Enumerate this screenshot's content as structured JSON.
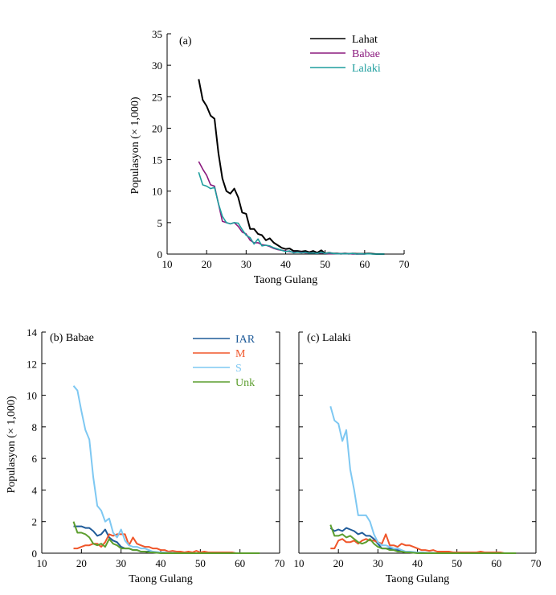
{
  "chart_data": [
    {
      "id": "a",
      "type": "line",
      "panel_label": "(a)",
      "xlabel": "Taong Gulang",
      "ylabel": "Populasyon (× 1,000)",
      "xlim": [
        10,
        70
      ],
      "ylim": [
        0,
        35
      ],
      "xticks": [
        "10",
        "20",
        "30",
        "40",
        "50",
        "60",
        "70"
      ],
      "yticks": [
        "0",
        "5",
        "10",
        "15",
        "20",
        "25",
        "30",
        "35"
      ],
      "legend_position": "top-right",
      "series": [
        {
          "name": "Lahat",
          "color": "#000000",
          "x": [
            18,
            19,
            20,
            21,
            22,
            23,
            24,
            25,
            26,
            27,
            28,
            29,
            30,
            31,
            32,
            33,
            34,
            35,
            36,
            37,
            38,
            39,
            40,
            41,
            42,
            43,
            44,
            45,
            46,
            47,
            48,
            49,
            50,
            51,
            52,
            53,
            54,
            55,
            56,
            57,
            58,
            59,
            60,
            61,
            62,
            63,
            64,
            65
          ],
          "y": [
            27.8,
            24.5,
            23.5,
            22,
            21.5,
            16,
            12,
            10,
            9.6,
            10.4,
            9,
            6.6,
            6.4,
            4,
            4,
            3.2,
            3,
            2.2,
            2.5,
            1.8,
            1.4,
            1,
            0.8,
            0.9,
            0.5,
            0.5,
            0.4,
            0.5,
            0.3,
            0.5,
            0.2,
            0.6,
            0.1,
            0.2,
            0.1,
            0.1,
            0.05,
            0.1,
            0.05,
            0.1,
            0.05,
            0.05,
            0.05,
            0.1,
            0.05,
            0,
            0,
            0
          ]
        },
        {
          "name": "Babae",
          "color": "#8B1A7E",
          "x": [
            18,
            19,
            20,
            21,
            22,
            23,
            24,
            25,
            26,
            27,
            28,
            29,
            30,
            31,
            32,
            33,
            34,
            35,
            36,
            37,
            38,
            39,
            40,
            41,
            42,
            43,
            44,
            45,
            46,
            47,
            48,
            49,
            50,
            51,
            52,
            53,
            54,
            55,
            56,
            57,
            58,
            59,
            60
          ],
          "y": [
            14.7,
            13.5,
            12.5,
            11,
            10.8,
            8,
            5.2,
            5,
            4.8,
            5,
            4.4,
            3.5,
            3.2,
            2.2,
            1.8,
            1.8,
            1.5,
            1.4,
            1.2,
            0.9,
            0.7,
            0.6,
            0.5,
            0.4,
            0.3,
            0.3,
            0.3,
            0.2,
            0.2,
            0.2,
            0.1,
            0.2,
            0.1,
            0.05,
            0.05,
            0.05,
            0.05,
            0.05,
            0.05,
            0,
            0,
            0,
            0
          ]
        },
        {
          "name": "Lalaki",
          "color": "#1E9E9E",
          "x": [
            18,
            19,
            20,
            21,
            22,
            23,
            24,
            25,
            26,
            27,
            28,
            29,
            30,
            31,
            32,
            33,
            34,
            35,
            36,
            37,
            38,
            39,
            40,
            41,
            42,
            43,
            44,
            45,
            46,
            47,
            48,
            49,
            50,
            51,
            52,
            53,
            54,
            55,
            56,
            57,
            58,
            59,
            60,
            61,
            62,
            63,
            64,
            65
          ],
          "y": [
            13,
            11,
            10.8,
            10.4,
            10.6,
            8,
            6,
            5,
            4.8,
            5,
            4.9,
            3.9,
            3,
            2.6,
            1.6,
            2.4,
            1.3,
            1.4,
            1.3,
            1,
            0.8,
            0.6,
            0.4,
            0.5,
            0.2,
            0.3,
            0.2,
            0.3,
            0.15,
            0.2,
            0.1,
            0.3,
            0.1,
            0.2,
            0.1,
            0.05,
            0.05,
            0.05,
            0.05,
            0.1,
            0,
            0.05,
            0,
            0.05,
            0,
            0,
            0,
            0
          ]
        }
      ]
    },
    {
      "id": "b",
      "type": "line",
      "panel_label": "(b) Babae",
      "xlabel": "Taong Gulang",
      "ylabel": "Populasyon (× 1,000)",
      "xlim": [
        10,
        70
      ],
      "ylim": [
        0,
        14
      ],
      "xticks": [
        "10",
        "20",
        "30",
        "40",
        "50",
        "60",
        "70"
      ],
      "yticks": [
        "0",
        "2",
        "4",
        "6",
        "8",
        "10",
        "12",
        "14"
      ],
      "legend_position": "top-right",
      "series": [
        {
          "name": "IAR",
          "color": "#1F5B99",
          "x": [
            18,
            19,
            20,
            21,
            22,
            23,
            24,
            25,
            26,
            27,
            28,
            29,
            30,
            31,
            32,
            33,
            34,
            35,
            36,
            37,
            38,
            39,
            40,
            45,
            50,
            55,
            60,
            65
          ],
          "y": [
            1.7,
            1.7,
            1.7,
            1.6,
            1.6,
            1.4,
            1.1,
            1.2,
            1.5,
            1,
            0.8,
            0.7,
            0.4,
            0.3,
            0.3,
            0.2,
            0.2,
            0.1,
            0.1,
            0.1,
            0.05,
            0.05,
            0.05,
            0,
            0,
            0,
            0,
            0
          ]
        },
        {
          "name": "M",
          "color": "#F0562A",
          "x": [
            18,
            19,
            20,
            21,
            22,
            23,
            24,
            25,
            26,
            27,
            28,
            29,
            30,
            31,
            32,
            33,
            34,
            35,
            36,
            37,
            38,
            39,
            40,
            41,
            42,
            43,
            44,
            45,
            46,
            47,
            48,
            49,
            50,
            51,
            52,
            53,
            54,
            55,
            56,
            57,
            58,
            59,
            60,
            61,
            62,
            63,
            64,
            65
          ],
          "y": [
            0.3,
            0.3,
            0.4,
            0.5,
            0.5,
            0.6,
            0.6,
            0.4,
            0.7,
            1.2,
            1.1,
            1.2,
            1.2,
            1.2,
            0.5,
            1,
            0.6,
            0.5,
            0.4,
            0.4,
            0.3,
            0.3,
            0.2,
            0.2,
            0.1,
            0.15,
            0.1,
            0.1,
            0.05,
            0.1,
            0.05,
            0.15,
            0.05,
            0.1,
            0.05,
            0.05,
            0.05,
            0.05,
            0.05,
            0.05,
            0.05,
            0,
            0,
            0,
            0,
            0,
            0,
            0
          ]
        },
        {
          "name": "S",
          "color": "#7EC8F2",
          "x": [
            18,
            19,
            20,
            21,
            22,
            23,
            24,
            25,
            26,
            27,
            28,
            29,
            30,
            31,
            32,
            33,
            34,
            35,
            36,
            37,
            38,
            40,
            45,
            50,
            55,
            60,
            65
          ],
          "y": [
            10.6,
            10.3,
            9,
            7.8,
            7.2,
            4.8,
            3,
            2.7,
            2,
            2.2,
            1.3,
            1,
            1.5,
            0.8,
            0.5,
            0.4,
            0.4,
            0.3,
            0.3,
            0.2,
            0.1,
            0.05,
            0,
            0,
            0,
            0,
            0
          ]
        },
        {
          "name": "Unk",
          "color": "#5C9E2E",
          "x": [
            18,
            19,
            20,
            21,
            22,
            23,
            24,
            25,
            26,
            27,
            28,
            29,
            30,
            31,
            32,
            33,
            34,
            35,
            36,
            37,
            38,
            40,
            45,
            50,
            55,
            60,
            65
          ],
          "y": [
            2,
            1.3,
            1.3,
            1.2,
            1,
            0.6,
            0.5,
            0.6,
            0.4,
            0.9,
            0.6,
            0.5,
            0.3,
            0.3,
            0.3,
            0.2,
            0.2,
            0.1,
            0.1,
            0.05,
            0.05,
            0,
            0,
            0,
            0,
            0,
            0
          ]
        }
      ]
    },
    {
      "id": "c",
      "type": "line",
      "panel_label": "(c) Lalaki",
      "xlabel": "Taong Gulang",
      "xlim": [
        10,
        70
      ],
      "ylim": [
        0,
        14
      ],
      "xticks": [
        "10",
        "20",
        "30",
        "40",
        "50",
        "60",
        "70"
      ],
      "series": [
        {
          "name": "IAR",
          "color": "#1F5B99",
          "x": [
            18,
            19,
            20,
            21,
            22,
            23,
            24,
            25,
            26,
            27,
            28,
            29,
            30,
            31,
            32,
            33,
            34,
            35,
            36,
            37,
            38,
            39,
            40,
            45,
            50,
            55,
            60,
            65
          ],
          "y": [
            1.6,
            1.4,
            1.5,
            1.4,
            1.6,
            1.5,
            1.4,
            1.2,
            1.3,
            1.1,
            1.1,
            0.9,
            0.6,
            0.3,
            0.3,
            0.3,
            0.2,
            0.2,
            0.1,
            0.1,
            0.05,
            0.05,
            0.05,
            0,
            0,
            0,
            0,
            0
          ]
        },
        {
          "name": "M",
          "color": "#F0562A",
          "x": [
            18,
            19,
            20,
            21,
            22,
            23,
            24,
            25,
            26,
            27,
            28,
            29,
            30,
            31,
            32,
            33,
            34,
            35,
            36,
            37,
            38,
            39,
            40,
            41,
            42,
            43,
            44,
            45,
            46,
            47,
            48,
            49,
            50,
            51,
            52,
            53,
            54,
            55,
            56,
            57,
            58,
            59,
            60,
            61,
            62,
            63,
            64,
            65
          ],
          "y": [
            0.3,
            0.3,
            0.8,
            0.9,
            0.7,
            0.7,
            0.8,
            0.6,
            0.8,
            0.9,
            0.8,
            0.8,
            0.7,
            0.6,
            1.2,
            0.5,
            0.5,
            0.4,
            0.6,
            0.5,
            0.5,
            0.4,
            0.3,
            0.2,
            0.2,
            0.15,
            0.2,
            0.1,
            0.1,
            0.1,
            0.1,
            0.05,
            0.05,
            0.05,
            0.05,
            0.05,
            0.05,
            0.05,
            0.1,
            0.05,
            0.05,
            0.05,
            0.05,
            0.05,
            0,
            0,
            0,
            0
          ]
        },
        {
          "name": "S",
          "color": "#7EC8F2",
          "x": [
            18,
            19,
            20,
            21,
            22,
            23,
            24,
            25,
            26,
            27,
            28,
            29,
            30,
            31,
            32,
            33,
            34,
            35,
            36,
            37,
            38,
            40,
            45,
            50,
            55,
            60,
            65
          ],
          "y": [
            9.3,
            8.4,
            8.2,
            7.1,
            7.8,
            5.3,
            4,
            2.4,
            2.4,
            2.4,
            2,
            1.2,
            0.7,
            0.5,
            0.5,
            0.4,
            0.3,
            0.3,
            0.2,
            0.1,
            0.1,
            0.05,
            0,
            0,
            0,
            0,
            0
          ]
        },
        {
          "name": "Unk",
          "color": "#5C9E2E",
          "x": [
            18,
            19,
            20,
            21,
            22,
            23,
            24,
            25,
            26,
            27,
            28,
            29,
            30,
            31,
            32,
            33,
            34,
            35,
            36,
            37,
            38,
            40,
            45,
            50,
            55,
            60,
            65
          ],
          "y": [
            1.8,
            1.1,
            1.1,
            1.2,
            1,
            1.1,
            0.9,
            0.7,
            0.6,
            0.7,
            0.9,
            0.6,
            0.4,
            0.3,
            0.3,
            0.2,
            0.2,
            0.1,
            0.1,
            0.05,
            0.05,
            0,
            0,
            0,
            0,
            0,
            0
          ]
        }
      ]
    }
  ]
}
